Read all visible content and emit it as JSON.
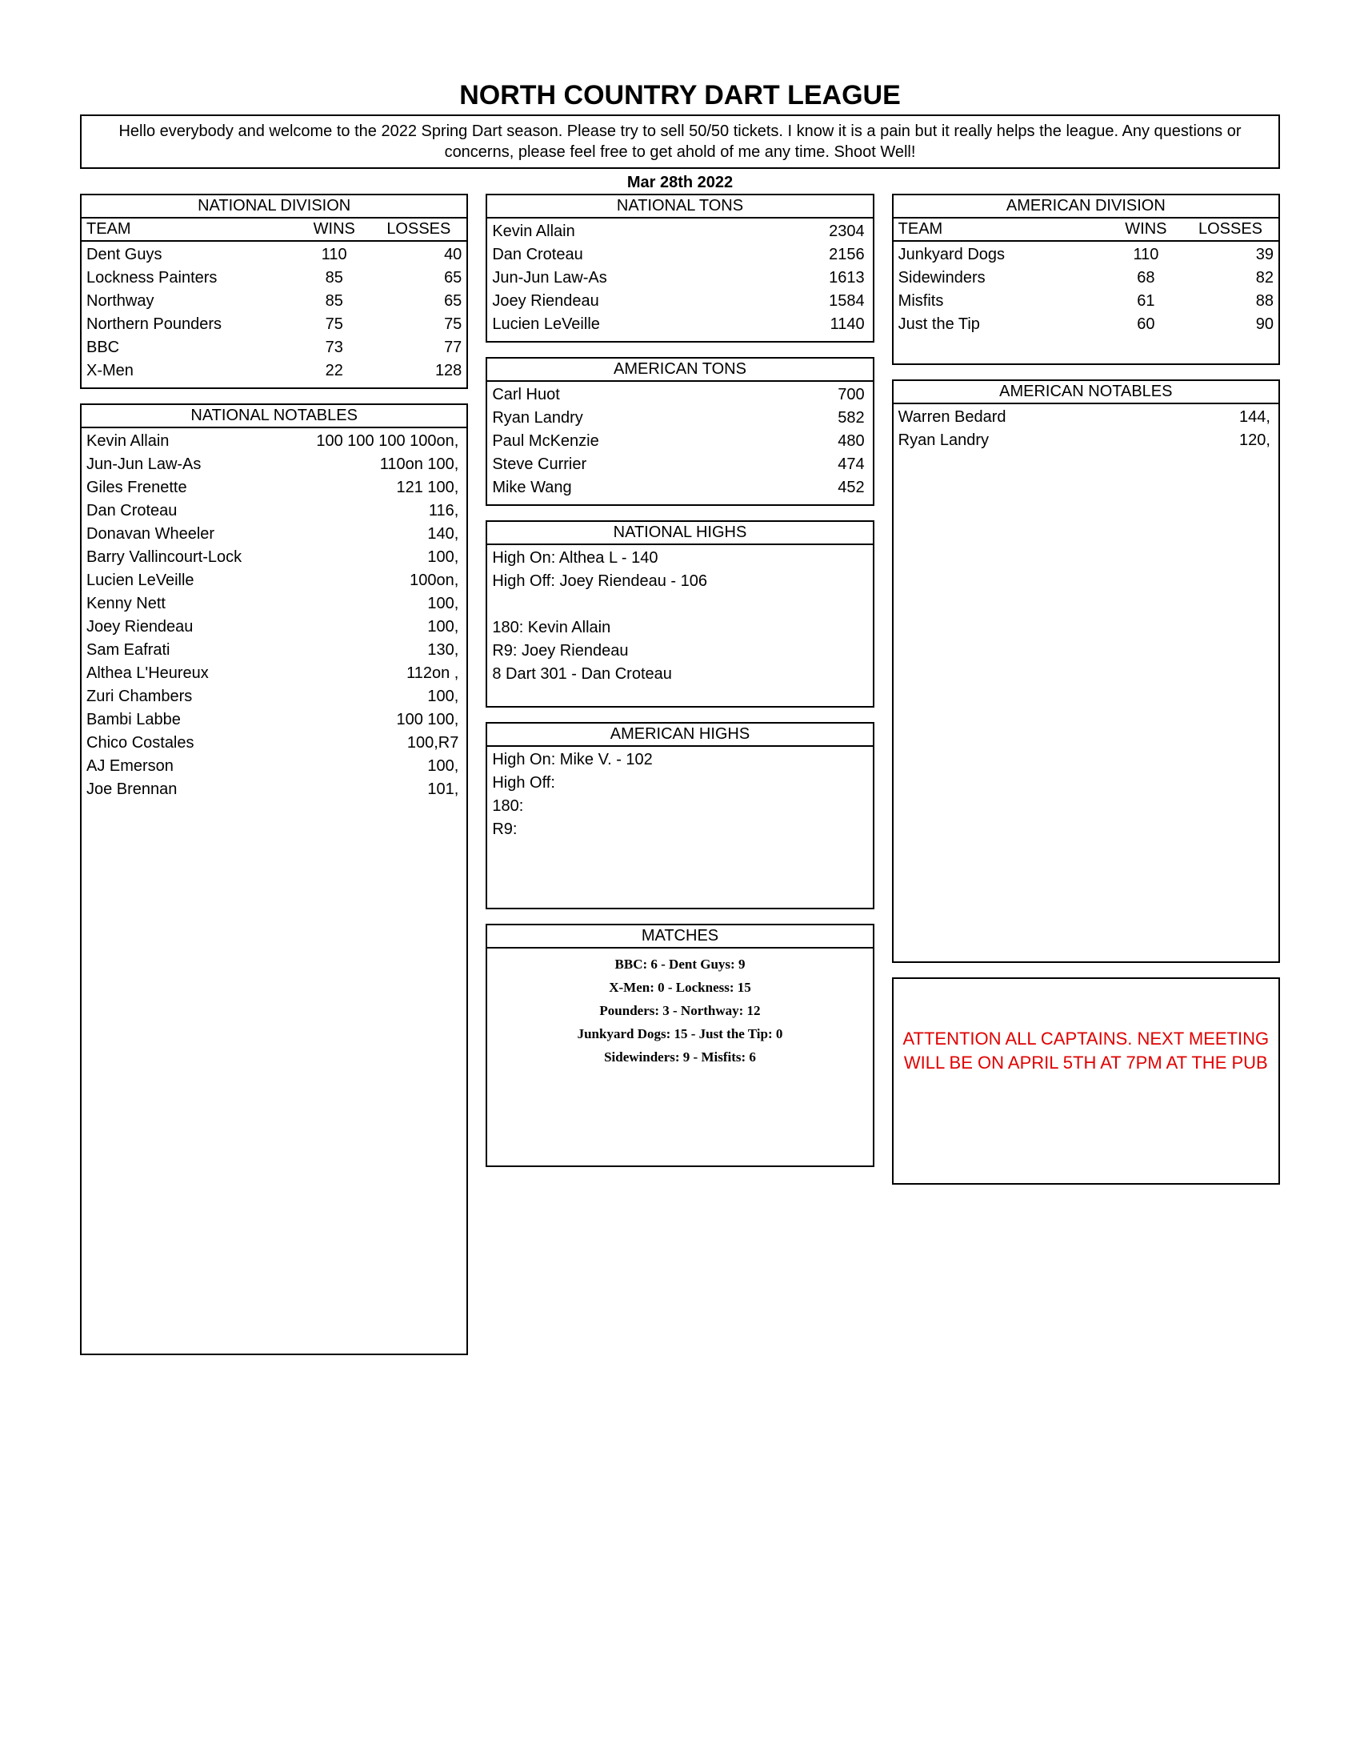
{
  "title": "NORTH COUNTRY DART LEAGUE",
  "intro": "Hello everybody and welcome to the 2022 Spring Dart season.  Please try to sell 50/50 tickets.  I know it is a pain but it really helps the league.  Any questions or concerns, please feel free to get ahold of me any time.  Shoot Well!",
  "date": "Mar 28th 2022",
  "headers": {
    "national_division": "NATIONAL DIVISION",
    "american_division": "AMERICAN DIVISION",
    "team": "TEAM",
    "wins": "WINS",
    "losses": "LOSSES",
    "national_tons": "NATIONAL TONS",
    "american_tons": "AMERICAN TONS",
    "national_notables": "NATIONAL NOTABLES",
    "american_notables": "AMERICAN NOTABLES",
    "national_highs": "NATIONAL HIGHS",
    "american_highs": "AMERICAN HIGHS",
    "matches": "MATCHES"
  },
  "national_division": [
    {
      "team": "Dent Guys",
      "wins": "110",
      "losses": "40"
    },
    {
      "team": "Lockness Painters",
      "wins": "85",
      "losses": "65"
    },
    {
      "team": "Northway",
      "wins": "85",
      "losses": "65"
    },
    {
      "team": "Northern Pounders",
      "wins": "75",
      "losses": "75"
    },
    {
      "team": "BBC",
      "wins": "73",
      "losses": "77"
    },
    {
      "team": "X-Men",
      "wins": "22",
      "losses": "128"
    }
  ],
  "american_division": [
    {
      "team": "Junkyard Dogs",
      "wins": "110",
      "losses": "39"
    },
    {
      "team": "Sidewinders",
      "wins": "68",
      "losses": "82"
    },
    {
      "team": "Misfits",
      "wins": "61",
      "losses": "88"
    },
    {
      "team": "Just the Tip",
      "wins": "60",
      "losses": "90"
    }
  ],
  "national_tons": [
    {
      "name": "Kevin Allain",
      "val": "2304"
    },
    {
      "name": "Dan Croteau",
      "val": "2156"
    },
    {
      "name": "Jun-Jun Law-As",
      "val": "1613"
    },
    {
      "name": "Joey Riendeau",
      "val": "1584"
    },
    {
      "name": "Lucien LeVeille",
      "val": "1140"
    }
  ],
  "american_tons": [
    {
      "name": "Carl Huot",
      "val": "700"
    },
    {
      "name": "Ryan Landry",
      "val": "582"
    },
    {
      "name": "Paul McKenzie",
      "val": "480"
    },
    {
      "name": "Steve Currier",
      "val": "474"
    },
    {
      "name": "Mike Wang",
      "val": "452"
    }
  ],
  "national_notables": [
    {
      "name": "Kevin Allain",
      "val": "100 100 100 100on,"
    },
    {
      "name": "Jun-Jun Law-As",
      "val": "110on 100,"
    },
    {
      "name": "Giles Frenette",
      "val": "121 100,"
    },
    {
      "name": "Dan Croteau",
      "val": "116,"
    },
    {
      "name": "Donavan Wheeler",
      "val": "140,"
    },
    {
      "name": "Barry Vallincourt-Lock",
      "val": "100,"
    },
    {
      "name": "Lucien LeVeille",
      "val": "100on,"
    },
    {
      "name": "Kenny Nett",
      "val": "100,"
    },
    {
      "name": "Joey Riendeau",
      "val": "100,"
    },
    {
      "name": "Sam Eafrati",
      "val": "130,"
    },
    {
      "name": "Althea L'Heureux",
      "val": "112on ,"
    },
    {
      "name": "Zuri Chambers",
      "val": "100,"
    },
    {
      "name": "Bambi Labbe",
      "val": "100 100,"
    },
    {
      "name": "Chico Costales",
      "val": "100,R7"
    },
    {
      "name": "AJ Emerson",
      "val": "100,"
    },
    {
      "name": "Joe Brennan",
      "val": "101,"
    }
  ],
  "american_notables": [
    {
      "name": "Warren Bedard",
      "val": "144,"
    },
    {
      "name": "Ryan Landry",
      "val": "120,"
    }
  ],
  "national_highs": [
    "High On: Althea L - 140",
    "High Off: Joey Riendeau - 106",
    "",
    "180: Kevin Allain",
    "R9: Joey Riendeau",
    "8 Dart 301 - Dan Croteau"
  ],
  "american_highs": [
    "High On: Mike V. - 102",
    "High Off:",
    "180:",
    "R9:"
  ],
  "matches": [
    "BBC: 6 - Dent Guys: 9",
    "X-Men: 0 - Lockness: 15",
    "Pounders: 3 - Northway: 12",
    "Junkyard Dogs: 15 - Just the Tip: 0",
    "Sidewinders: 9 - Misfits: 6"
  ],
  "announcement": "ATTENTION ALL CAPTAINS. NEXT MEETING WILL BE ON APRIL 5TH AT 7PM AT THE PUB",
  "colors": {
    "border": "#000000",
    "text": "#000000",
    "announce": "#e00000",
    "background": "#ffffff"
  }
}
